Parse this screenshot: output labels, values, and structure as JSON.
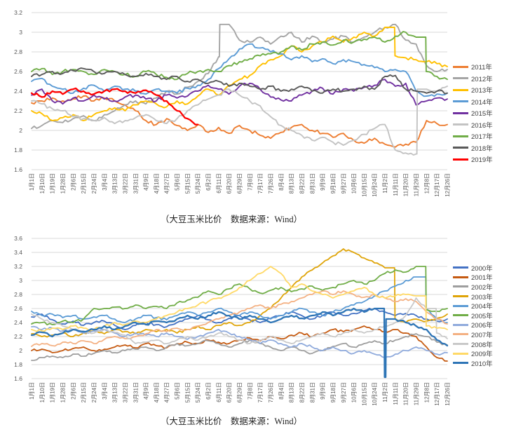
{
  "captions": {
    "top": "（大豆玉米比价　数据来源：Wind）",
    "bottom": "（大豆玉米比价　数据来源：Wind）"
  },
  "colors": {
    "grid": "#D9D9D9",
    "axis_text": "#595959",
    "legend_text": "#404040",
    "background": "#FFFFFF"
  },
  "chart_data": [
    {
      "type": "line",
      "caption": "（大豆玉米比价　数据来源：Wind）",
      "grid": true,
      "legend_position": "right",
      "ylim": [
        1.6,
        3.2
      ],
      "y_tick_labels": [
        "3.2",
        "3",
        "2.8",
        "2.6",
        "2.4",
        "2.2",
        "2",
        "1.8",
        "1.6"
      ],
      "x_labels": [
        "1月1日",
        "1月10日",
        "1月19日",
        "1月28日",
        "2月6日",
        "2月15日",
        "2月24日",
        "3月4日",
        "3月13日",
        "3月22日",
        "3月31日",
        "4月9日",
        "4月18日",
        "4月27日",
        "5月6日",
        "5月15日",
        "5月24日",
        "6月2日",
        "6月11日",
        "6月20日",
        "6月29日",
        "7月8日",
        "7月17日",
        "7月26日",
        "8月4日",
        "8月13日",
        "8月22日",
        "8月31日",
        "9月9日",
        "9月18日",
        "9月27日",
        "10月6日",
        "10月15日",
        "10月24日",
        "11月2日",
        "11月11日",
        "11月20日",
        "11月29日",
        "12月8日",
        "12月17日",
        "12月26日"
      ],
      "series": [
        {
          "name": "2011年",
          "color": "#ED7D31",
          "width": 1.9,
          "values": [
            2.28,
            2.3,
            2.33,
            2.3,
            2.32,
            2.35,
            2.3,
            2.33,
            2.3,
            2.26,
            2.2,
            2.1,
            2.06,
            2.12,
            2.05,
            2.0,
            2.06,
            1.98,
            2.03,
            1.97,
            2.05,
            2.0,
            1.95,
            1.92,
            1.98,
            2.03,
            2.06,
            2.0,
            1.97,
            1.93,
            1.97,
            1.9,
            1.87,
            1.92,
            1.86,
            1.83,
            1.86,
            1.88,
            2.1,
            2.07,
            2.06
          ]
        },
        {
          "name": "2012年",
          "color": "#A5A5A5",
          "width": 1.9,
          "values": [
            2.02,
            2.05,
            2.1,
            2.08,
            2.12,
            2.15,
            2.1,
            2.16,
            2.2,
            2.26,
            2.3,
            2.27,
            2.33,
            2.4,
            2.37,
            2.44,
            2.5,
            2.58,
            2.75,
            3.08,
            2.92,
            2.9,
            2.95,
            2.88,
            2.96,
            3.0,
            2.9,
            2.96,
            2.9,
            2.93,
            2.96,
            2.9,
            2.95,
            3.0,
            3.05,
            3.08,
            2.92,
            2.88,
            2.66,
            2.6,
            2.62
          ]
        },
        {
          "name": "2013年",
          "color": "#FFC000",
          "width": 1.9,
          "values": [
            2.2,
            2.17,
            2.1,
            2.13,
            2.16,
            2.1,
            2.16,
            2.2,
            2.23,
            2.2,
            2.26,
            2.3,
            2.27,
            2.24,
            2.3,
            2.27,
            2.35,
            2.42,
            2.36,
            2.46,
            2.52,
            2.56,
            2.66,
            2.72,
            2.76,
            2.86,
            2.8,
            2.86,
            2.9,
            2.96,
            2.9,
            2.95,
            3.0,
            2.96,
            3.05,
            2.76,
            2.74,
            2.72,
            2.7,
            2.68,
            2.65
          ]
        },
        {
          "name": "2014年",
          "color": "#5B9BD5",
          "width": 1.9,
          "values": [
            2.5,
            2.53,
            2.45,
            2.42,
            2.38,
            2.43,
            2.46,
            2.4,
            2.45,
            2.42,
            2.4,
            2.37,
            2.42,
            2.4,
            2.38,
            2.43,
            2.46,
            2.52,
            2.63,
            2.73,
            2.83,
            2.88,
            2.84,
            2.8,
            2.78,
            2.72,
            2.76,
            2.7,
            2.73,
            2.68,
            2.72,
            2.7,
            2.67,
            2.64,
            2.6,
            2.62,
            2.6,
            2.4,
            2.35,
            2.37,
            2.38
          ]
        },
        {
          "name": "2015年",
          "color": "#7030A0",
          "width": 1.9,
          "values": [
            2.36,
            2.42,
            2.3,
            2.27,
            2.33,
            2.3,
            2.36,
            2.32,
            2.3,
            2.34,
            2.36,
            2.32,
            2.3,
            2.36,
            2.33,
            2.35,
            2.4,
            2.46,
            2.42,
            2.37,
            2.45,
            2.48,
            2.42,
            2.34,
            2.31,
            2.3,
            2.36,
            2.4,
            2.43,
            2.37,
            2.42,
            2.4,
            2.44,
            2.46,
            2.52,
            2.45,
            2.48,
            2.26,
            2.3,
            2.33,
            2.32
          ]
        },
        {
          "name": "2016年",
          "color": "#C3C3C3",
          "width": 1.9,
          "values": [
            2.3,
            2.27,
            2.22,
            2.2,
            2.14,
            2.12,
            2.1,
            2.13,
            2.07,
            2.1,
            2.13,
            2.16,
            2.1,
            2.07,
            2.12,
            2.2,
            2.26,
            2.32,
            2.36,
            2.42,
            2.36,
            2.3,
            2.25,
            2.14,
            2.05,
            2.0,
            1.95,
            1.9,
            1.93,
            1.88,
            1.85,
            1.9,
            1.96,
            2.02,
            2.06,
            1.8,
            1.77,
            1.76,
            2.42,
            2.4,
            2.45
          ]
        },
        {
          "name": "2017年",
          "color": "#70AD47",
          "width": 1.9,
          "values": [
            2.6,
            2.63,
            2.57,
            2.6,
            2.62,
            2.6,
            2.57,
            2.62,
            2.6,
            2.57,
            2.55,
            2.6,
            2.57,
            2.54,
            2.52,
            2.58,
            2.6,
            2.62,
            2.6,
            2.66,
            2.7,
            2.73,
            2.76,
            2.78,
            2.8,
            2.86,
            2.82,
            2.88,
            2.9,
            2.87,
            2.92,
            2.9,
            2.93,
            2.95,
            2.9,
            2.96,
            3.0,
            2.95,
            2.6,
            2.55,
            2.52
          ]
        },
        {
          "name": "2018年",
          "color": "#595959",
          "width": 1.9,
          "values": [
            2.55,
            2.57,
            2.6,
            2.58,
            2.61,
            2.63,
            2.6,
            2.58,
            2.6,
            2.57,
            2.55,
            2.58,
            2.55,
            2.52,
            2.55,
            2.5,
            2.52,
            2.48,
            2.5,
            2.45,
            2.48,
            2.45,
            2.42,
            2.45,
            2.4,
            2.42,
            2.45,
            2.4,
            2.38,
            2.42,
            2.4,
            2.42,
            2.45,
            2.42,
            2.55,
            2.56,
            2.42,
            2.4,
            2.38,
            2.4,
            2.38
          ]
        },
        {
          "name": "2019年",
          "color": "#FF0000",
          "width": 2.3,
          "values": [
            2.38,
            2.34,
            2.4,
            2.37,
            2.42,
            2.4,
            2.37,
            2.4,
            2.42,
            2.4,
            2.38,
            2.41,
            2.36,
            2.3,
            2.2,
            2.12,
            2.06,
            null,
            null,
            null,
            null,
            null,
            null,
            null,
            null,
            null,
            null,
            null,
            null,
            null,
            null,
            null,
            null,
            null,
            null,
            null,
            null,
            null,
            null,
            null,
            null
          ]
        }
      ]
    },
    {
      "type": "line",
      "caption": "（大豆玉米比价　数据来源：Wind）",
      "grid": true,
      "legend_position": "right",
      "ylim": [
        1.6,
        3.6
      ],
      "y_tick_labels": [
        "3.6",
        "3.4",
        "3.2",
        "3",
        "2.8",
        "2.6",
        "2.4",
        "2.2",
        "2",
        "1.8",
        "1.6"
      ],
      "x_labels": [
        "1月1日",
        "1月10日",
        "1月19日",
        "1月28日",
        "2月6日",
        "2月15日",
        "2月24日",
        "3月4日",
        "3月13日",
        "3月22日",
        "3月31日",
        "4月9日",
        "4月18日",
        "4月27日",
        "5月6日",
        "5月15日",
        "5月24日",
        "6月2日",
        "6月11日",
        "6月20日",
        "6月29日",
        "7月8日",
        "7月17日",
        "7月26日",
        "8月4日",
        "8月13日",
        "8月22日",
        "8月31日",
        "9月9日",
        "9月18日",
        "9月27日",
        "10月6日",
        "10月15日",
        "10月24日",
        "11月2日",
        "11月11日",
        "11月20日",
        "11月29日",
        "12月8日",
        "12月17日",
        "12月26日"
      ],
      "series": [
        {
          "name": "2000年",
          "color": "#4472C4",
          "width": 1.8,
          "values": [
            2.48,
            2.52,
            2.44,
            2.38,
            2.42,
            2.36,
            2.4,
            2.42,
            2.36,
            2.3,
            2.36,
            2.4,
            2.37,
            2.34,
            2.4,
            2.45,
            2.5,
            2.44,
            2.4,
            2.46,
            2.5,
            2.44,
            2.4,
            2.46,
            2.5,
            2.55,
            2.5,
            2.45,
            2.5,
            2.55,
            2.5,
            2.53,
            2.57,
            2.6,
            2.55,
            2.5,
            2.53,
            2.5,
            2.45,
            2.42,
            2.45
          ]
        },
        {
          "name": "2001年",
          "color": "#C55A11",
          "width": 1.8,
          "values": [
            2.0,
            2.02,
            1.97,
            2.0,
            2.03,
            2.05,
            2.0,
            2.02,
            2.05,
            2.08,
            2.04,
            2.1,
            2.07,
            2.04,
            2.1,
            2.12,
            2.1,
            2.15,
            2.12,
            2.1,
            2.15,
            2.18,
            2.14,
            2.2,
            2.17,
            2.22,
            2.25,
            2.2,
            2.25,
            2.3,
            2.27,
            2.3,
            2.35,
            2.3,
            2.27,
            2.3,
            2.25,
            2.2,
            2.05,
            1.9,
            1.85
          ]
        },
        {
          "name": "2002年",
          "color": "#9E9E9E",
          "width": 1.8,
          "values": [
            1.86,
            1.9,
            1.92,
            1.9,
            1.95,
            1.92,
            1.96,
            2.0,
            1.97,
            2.0,
            2.02,
            2.05,
            2.0,
            2.05,
            2.1,
            2.07,
            2.1,
            2.14,
            2.1,
            2.05,
            2.1,
            2.15,
            2.1,
            2.05,
            2.0,
            2.05,
            2.0,
            1.96,
            2.0,
            2.06,
            2.1,
            2.05,
            2.1,
            2.14,
            2.1,
            2.15,
            2.2,
            2.24,
            2.2,
            2.12,
            2.08
          ]
        },
        {
          "name": "2003年",
          "color": "#DFA408",
          "width": 1.8,
          "values": [
            2.24,
            2.2,
            2.22,
            2.25,
            2.2,
            2.25,
            2.28,
            2.24,
            2.3,
            2.27,
            2.24,
            2.3,
            2.27,
            2.3,
            2.25,
            2.3,
            2.35,
            2.3,
            2.36,
            2.4,
            2.36,
            2.4,
            2.5,
            2.6,
            2.75,
            2.9,
            3.05,
            3.15,
            3.25,
            3.35,
            3.45,
            3.4,
            3.32,
            3.25,
            3.18,
            2.45,
            2.4,
            2.45,
            2.42,
            2.46,
            2.52
          ]
        },
        {
          "name": "2004年",
          "color": "#5B9BD5",
          "width": 1.8,
          "values": [
            2.56,
            2.5,
            2.52,
            2.47,
            2.5,
            2.45,
            2.48,
            2.5,
            2.45,
            2.4,
            2.45,
            2.5,
            2.47,
            2.44,
            2.5,
            2.55,
            2.5,
            2.55,
            2.6,
            2.55,
            2.5,
            2.55,
            2.5,
            2.45,
            2.5,
            2.55,
            2.6,
            2.55,
            2.5,
            2.55,
            2.6,
            2.65,
            2.7,
            2.78,
            2.85,
            2.92,
            3.0,
            3.05,
            2.6,
            2.45,
            2.4
          ]
        },
        {
          "name": "2005年",
          "color": "#70AD47",
          "width": 1.8,
          "values": [
            2.38,
            2.4,
            2.37,
            2.42,
            2.4,
            2.45,
            2.6,
            2.6,
            2.62,
            2.6,
            2.65,
            2.6,
            2.63,
            2.6,
            2.68,
            2.72,
            2.76,
            2.85,
            2.8,
            2.88,
            2.95,
            2.88,
            2.82,
            2.86,
            2.9,
            2.84,
            2.88,
            2.92,
            2.86,
            2.9,
            2.95,
            3.0,
            2.95,
            3.0,
            3.1,
            3.15,
            3.12,
            3.2,
            2.58,
            2.56,
            2.6
          ]
        },
        {
          "name": "2006年",
          "color": "#8FAADC",
          "width": 1.8,
          "values": [
            2.34,
            2.3,
            2.32,
            2.28,
            2.3,
            2.25,
            2.28,
            2.3,
            2.25,
            2.2,
            2.25,
            2.22,
            2.2,
            2.25,
            2.2,
            2.16,
            2.2,
            2.25,
            2.3,
            2.25,
            2.2,
            2.16,
            2.1,
            2.15,
            2.1,
            2.05,
            2.1,
            2.05,
            2.0,
            2.05,
            2.0,
            1.96,
            2.0,
            1.95,
            1.9,
            1.95,
            2.0,
            2.05,
            2.0,
            1.95,
            1.97
          ]
        },
        {
          "name": "2007年",
          "color": "#F4B183",
          "width": 1.8,
          "values": [
            2.06,
            2.1,
            2.07,
            2.12,
            2.1,
            2.14,
            2.1,
            2.16,
            2.2,
            2.17,
            2.2,
            2.24,
            2.3,
            2.27,
            2.32,
            2.3,
            2.35,
            2.4,
            2.45,
            2.5,
            2.55,
            2.6,
            2.65,
            2.6,
            2.66,
            2.7,
            2.75,
            2.8,
            2.85,
            2.8,
            2.85,
            2.8,
            2.76,
            2.8,
            2.75,
            2.7,
            2.74,
            2.7,
            2.55,
            2.45,
            2.38
          ]
        },
        {
          "name": "2008年",
          "color": "#C9C9C9",
          "width": 1.8,
          "values": [
            2.52,
            2.45,
            2.4,
            2.35,
            2.3,
            2.28,
            2.25,
            2.3,
            2.26,
            2.22,
            2.1,
            2.12,
            2.15,
            2.1,
            2.15,
            2.2,
            2.15,
            2.2,
            2.25,
            2.2,
            2.15,
            2.1,
            2.15,
            2.2,
            2.15,
            2.1,
            2.15,
            2.2,
            2.25,
            2.2,
            2.25,
            2.3,
            2.25,
            2.3,
            2.35,
            2.4,
            2.5,
            2.75,
            2.6,
            2.25,
            2.17
          ]
        },
        {
          "name": "2009年",
          "color": "#FFD966",
          "width": 1.8,
          "values": [
            2.3,
            2.28,
            2.32,
            2.3,
            2.35,
            2.32,
            2.3,
            2.35,
            2.4,
            2.37,
            2.42,
            2.4,
            2.45,
            2.5,
            2.55,
            2.6,
            2.65,
            2.7,
            2.75,
            2.8,
            2.9,
            3.0,
            3.1,
            3.2,
            3.1,
            2.9,
            2.95,
            2.85,
            2.8,
            2.75,
            2.8,
            2.85,
            2.9,
            2.8,
            2.75,
            2.78,
            2.8,
            2.78,
            2.35,
            2.32,
            2.3
          ]
        },
        {
          "name": "2010年",
          "color": "#2E75B6",
          "width": 2.3,
          "values": [
            2.22,
            2.26,
            2.2,
            2.25,
            2.3,
            2.27,
            2.3,
            2.35,
            2.3,
            2.35,
            2.4,
            2.37,
            2.42,
            2.4,
            2.45,
            2.5,
            2.45,
            2.5,
            2.55,
            2.5,
            2.45,
            2.5,
            2.45,
            2.4,
            2.45,
            2.5,
            2.46,
            2.5,
            2.55,
            2.5,
            2.55,
            2.6,
            2.55,
            2.6,
            1.62,
            2.45,
            2.4,
            2.35,
            2.3,
            2.15,
            2.07
          ]
        }
      ]
    }
  ]
}
